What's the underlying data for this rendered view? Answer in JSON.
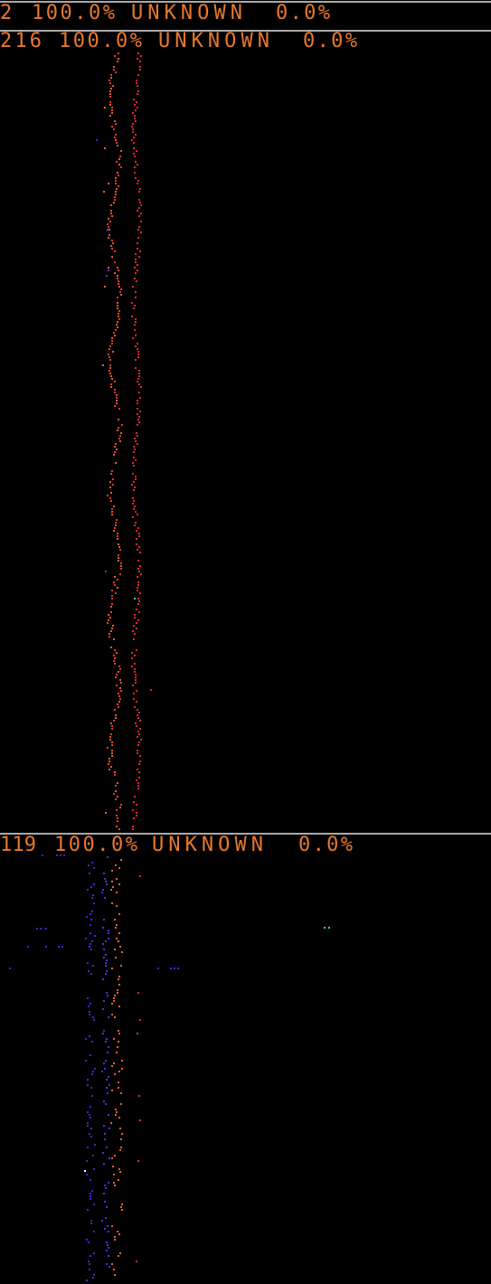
{
  "panels": [
    {
      "count": "2",
      "percent": "100.0%",
      "label": "UNKNOWN",
      "other": "0.0%"
    },
    {
      "count": "216",
      "percent": "100.0%",
      "label": "UNKNOWN",
      "other": "0.0%"
    },
    {
      "count": "119",
      "percent": "100.0%",
      "label": "UNKNOWN",
      "other": "0.0%"
    }
  ]
}
